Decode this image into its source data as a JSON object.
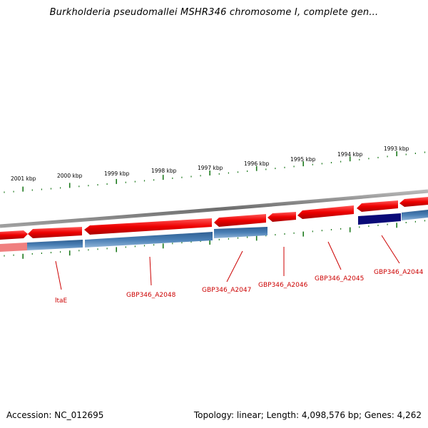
{
  "title": "Burkholderia pseudomallei MSHR346 chromosome I, complete gen...",
  "footer": {
    "accession": "Accession: NC_012695",
    "topology": "Topology: linear; Length: 4,098,576 bp; Genes: 4,262"
  },
  "ruler_labels": [
    "2001 kbp",
    "2000 kbp",
    "1999 kbp",
    "1998 kbp",
    "1997 kbp",
    "1996 kbp",
    "1995 kbp",
    "1994 kbp",
    "1993 kbp"
  ],
  "gene_labels": [
    "ltaE",
    "GBP346_A2048",
    "GBP346_A2047",
    "GBP346_A2046",
    "GBP346_A2045",
    "GBP346_A2044"
  ],
  "colors": {
    "gene_forward": "#ee0000",
    "gene_track": "#4a7fb5",
    "gene_highlight": "#0a0a78",
    "ruler_tick": "#1e7a1e",
    "backbone": "#808080",
    "label": "#cc0000"
  }
}
